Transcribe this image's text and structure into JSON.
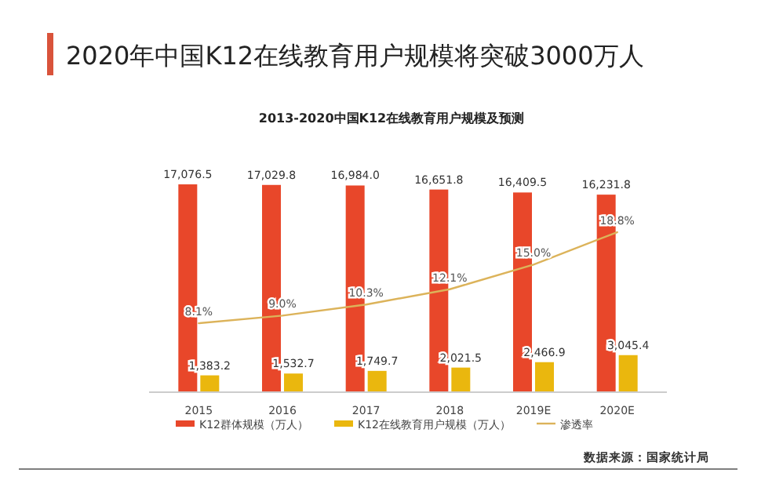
{
  "chart_data": {
    "type": "bar",
    "title": "2020年中国K12在线教育用户规模将突破3000万人",
    "subtitle": "2013-2020中国K12在线教育用户规模及预测",
    "categories": [
      "2015",
      "2016",
      "2017",
      "2018",
      "2019E",
      "2020E"
    ],
    "series": [
      {
        "name": "K12群体规模（万人）",
        "color": "#e8472a",
        "values": [
          17076.5,
          17029.8,
          16984.0,
          16651.8,
          16409.5,
          16231.8
        ],
        "value_labels": [
          "17,076.5",
          "17,029.8",
          "16,984.0",
          "16,651.8",
          "16,409.5",
          "16,231.8"
        ]
      },
      {
        "name": "K12在线教育用户规模（万人）",
        "color": "#eab70e",
        "values": [
          1383.2,
          1532.7,
          1749.7,
          2021.5,
          2466.9,
          3045.4
        ],
        "value_labels": [
          "1,383.2",
          "1,532.7",
          "1,749.7",
          "2,021.5",
          "2,466.9",
          "3,045.4"
        ]
      },
      {
        "name": "渗透率",
        "type": "line",
        "axis": "y2",
        "color": "#dcb35a",
        "values": [
          8.1,
          9.0,
          10.3,
          12.1,
          15.0,
          18.8
        ],
        "value_labels": [
          "8.1%",
          "9.0%",
          "10.3%",
          "12.1%",
          "15.0%",
          "18.8%"
        ]
      }
    ],
    "tick_labels": "x",
    "legend": "bottom",
    "marker": "none",
    "line_style": "solid",
    "annotations": [
      "数据来源：国家统计局"
    ]
  }
}
